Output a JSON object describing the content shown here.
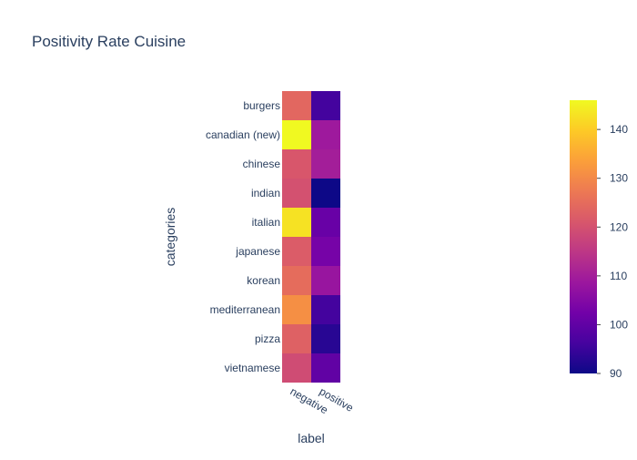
{
  "chart_data": {
    "type": "heatmap",
    "title": "Positivity Rate Cuisine",
    "xlabel": "label",
    "ylabel": "categories",
    "x": [
      "negative",
      "positive"
    ],
    "y": [
      "burgers",
      "canadian (new)",
      "chinese",
      "indian",
      "italian",
      "japanese",
      "korean",
      "mediterranean",
      "pizza",
      "vietnamese"
    ],
    "z": [
      [
        124,
        96
      ],
      [
        146,
        109
      ],
      [
        121,
        110
      ],
      [
        120,
        90
      ],
      [
        143,
        101
      ],
      [
        122,
        103
      ],
      [
        125,
        108
      ],
      [
        131,
        96
      ],
      [
        123,
        93
      ],
      [
        119,
        100
      ]
    ],
    "colorscale": [
      "#0d0887",
      "#46039f",
      "#7201a8",
      "#9c179e",
      "#bd3786",
      "#d8576b",
      "#ed7953",
      "#fb9f3a",
      "#fdca26",
      "#f0f921"
    ],
    "zrange": [
      90,
      146
    ],
    "colorbar": {
      "ticks": [
        90,
        100,
        110,
        120,
        130,
        140
      ],
      "tick_labels": [
        "90",
        "100",
        "110",
        "120",
        "130",
        "140"
      ]
    }
  }
}
